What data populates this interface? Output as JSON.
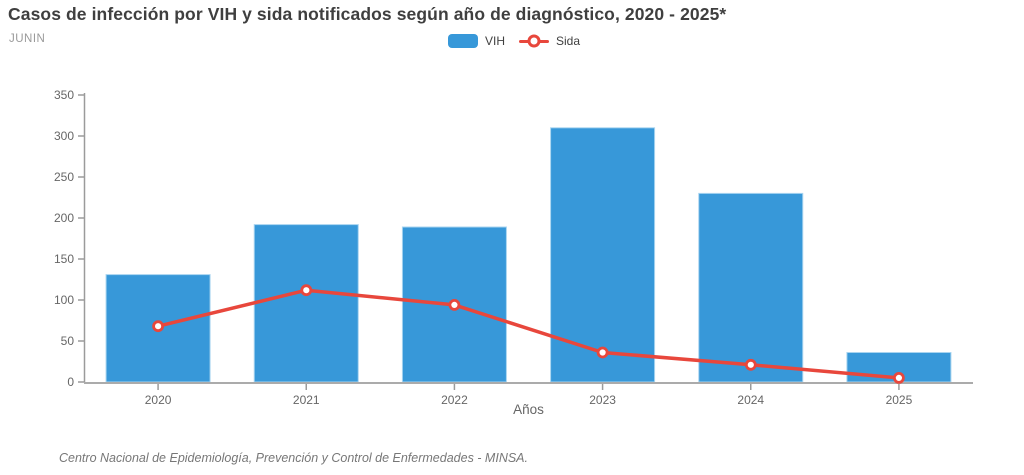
{
  "header": {
    "title": "Casos de infección por VIH y sida notificados según año de diagnóstico, 2020 - 2025*",
    "subtitle": "JUNIN"
  },
  "legend": {
    "items": [
      {
        "label": "VIH",
        "swatch": "bar-swatch",
        "color": "#3798D9"
      },
      {
        "label": "Sida",
        "swatch": "line-marker",
        "color": "#E8473C"
      }
    ]
  },
  "chart_data": {
    "type": "bar",
    "categories": [
      "2020",
      "2021",
      "2022",
      "2023",
      "2024",
      "2025"
    ],
    "series": [
      {
        "name": "VIH",
        "kind": "bar",
        "color": "#3798D9",
        "edge_color": "#A8D4F0",
        "values": [
          131,
          192,
          189,
          310,
          230,
          36
        ]
      },
      {
        "name": "Sida",
        "kind": "line",
        "color": "#E8473C",
        "marker": "circle-white-fill",
        "values": [
          68,
          112,
          94,
          36,
          21,
          5
        ]
      }
    ],
    "title": "Casos de infección por VIH y sida notificados según año de diagnóstico, 2020 - 2025*",
    "subtitle": "JUNIN",
    "xlabel": "Años",
    "ylabel": "",
    "ylim": [
      0,
      350
    ],
    "ytick_step": 50,
    "yticks": [
      0,
      50,
      100,
      150,
      200,
      250,
      300,
      350
    ],
    "grid": false,
    "legend_position": "top-center",
    "axis_color": "#9B9B9B",
    "tick_label_color": "#666666"
  },
  "footer": {
    "source": "Centro Nacional de Epidemiología, Prevención y Control de Enfermedades - MINSA."
  }
}
